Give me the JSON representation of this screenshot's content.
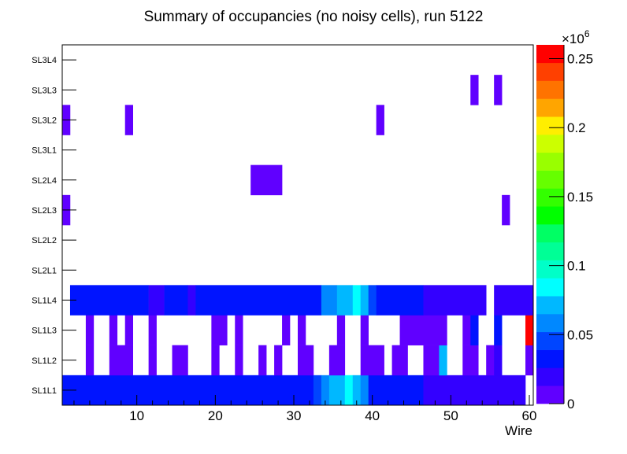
{
  "chart_data": {
    "type": "heatmap",
    "title": "Summary of occupancies (no noisy cells), run 5122",
    "xlabel": "Wire",
    "ylabel": "",
    "xlim": [
      0.5,
      60.5
    ],
    "x_ticks": [
      10,
      20,
      30,
      40,
      50,
      60
    ],
    "x_tick_labels": [
      "10",
      "20",
      "30",
      "40",
      "50",
      "60"
    ],
    "rows": [
      "SL1L1",
      "SL1L2",
      "SL1L3",
      "SL1L4",
      "SL2L1",
      "SL2L2",
      "SL2L3",
      "SL2L4",
      "SL3L1",
      "SL3L2",
      "SL3L3",
      "SL3L4"
    ],
    "zlim": [
      0,
      260000
    ],
    "z_multiplier_label": "×10",
    "z_multiplier_exponent": "6",
    "z_ticks": [
      0,
      0.05,
      0.1,
      0.15,
      0.2,
      0.25
    ],
    "z_tick_labels": [
      "0",
      "0.05",
      "0.1",
      "0.15",
      "0.2",
      "0.25"
    ],
    "palette": [
      "#6000ff",
      "#3300ff",
      "#0014ff",
      "#0045ff",
      "#0088ff",
      "#00b8ff",
      "#00ffff",
      "#00ffc8",
      "#00ff96",
      "#00ff64",
      "#00ff00",
      "#33ff00",
      "#66ff00",
      "#99ff00",
      "#ccff00",
      "#ffee00",
      "#ffa500",
      "#ff7300",
      "#ff4000",
      "#ff0000"
    ],
    "note": "cells given as [first_wire, last_wire, occupancy]",
    "cells": {
      "SL1L1": [
        [
          1,
          32,
          32000
        ],
        [
          33,
          33,
          45000
        ],
        [
          34,
          34,
          58000
        ],
        [
          35,
          36,
          71000
        ],
        [
          37,
          37,
          84000
        ],
        [
          38,
          38,
          71000
        ],
        [
          39,
          39,
          58000
        ],
        [
          40,
          46,
          32000
        ],
        [
          47,
          59,
          19000
        ]
      ],
      "SL1L2": [
        [
          4,
          4,
          6000
        ],
        [
          7,
          9,
          6000
        ],
        [
          12,
          12,
          6000
        ],
        [
          15,
          16,
          6000
        ],
        [
          20,
          20,
          6000
        ],
        [
          23,
          23,
          6000
        ],
        [
          26,
          26,
          6000
        ],
        [
          28,
          28,
          6000
        ],
        [
          31,
          32,
          6000
        ],
        [
          35,
          36,
          6000
        ],
        [
          39,
          41,
          6000
        ],
        [
          43,
          44,
          6000
        ],
        [
          47,
          48,
          6000
        ],
        [
          49,
          49,
          71000
        ],
        [
          52,
          53,
          6000
        ],
        [
          55,
          55,
          6000
        ],
        [
          56,
          56,
          19000
        ],
        [
          60,
          60,
          6000
        ]
      ],
      "SL1L3": [
        [
          4,
          4,
          6000
        ],
        [
          7,
          7,
          6000
        ],
        [
          9,
          9,
          6000
        ],
        [
          12,
          12,
          6000
        ],
        [
          20,
          21,
          6000
        ],
        [
          23,
          23,
          6000
        ],
        [
          29,
          29,
          6000
        ],
        [
          31,
          31,
          6000
        ],
        [
          36,
          36,
          6000
        ],
        [
          39,
          39,
          6000
        ],
        [
          44,
          49,
          6000
        ],
        [
          52,
          52,
          6000
        ],
        [
          53,
          53,
          32000
        ],
        [
          56,
          56,
          32000
        ],
        [
          60,
          60,
          255000
        ]
      ],
      "SL1L4": [
        [
          2,
          11,
          32000
        ],
        [
          12,
          13,
          19000
        ],
        [
          14,
          16,
          32000
        ],
        [
          17,
          17,
          19000
        ],
        [
          18,
          33,
          32000
        ],
        [
          34,
          35,
          58000
        ],
        [
          36,
          37,
          71000
        ],
        [
          38,
          38,
          84000
        ],
        [
          39,
          39,
          71000
        ],
        [
          40,
          40,
          45000
        ],
        [
          41,
          46,
          32000
        ],
        [
          47,
          54,
          19000
        ],
        [
          56,
          60,
          19000
        ]
      ],
      "SL2L1": [],
      "SL2L2": [],
      "SL2L3": [
        [
          1,
          1,
          6000
        ],
        [
          57,
          57,
          6000
        ]
      ],
      "SL2L4": [
        [
          25,
          28,
          6000
        ]
      ],
      "SL3L1": [],
      "SL3L2": [
        [
          1,
          1,
          6000
        ],
        [
          9,
          9,
          6000
        ],
        [
          41,
          41,
          6000
        ]
      ],
      "SL3L3": [
        [
          53,
          53,
          6000
        ],
        [
          56,
          56,
          6000
        ]
      ],
      "SL3L4": []
    }
  }
}
